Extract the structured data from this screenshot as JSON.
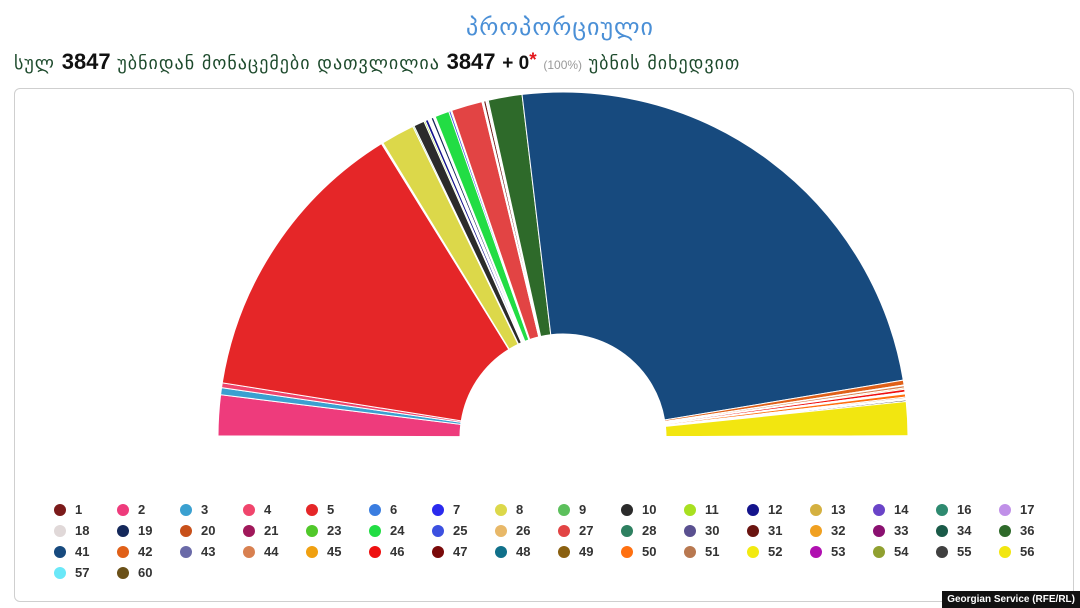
{
  "header": {
    "title": "პროპორციული",
    "total_prefix": "სულ",
    "total_precincts": "3847",
    "text_mid": "უბნიდან მონაცემები დათვლილია",
    "counted_precincts": "3847",
    "plus": "+ 0",
    "asterisk": "*",
    "percent": "(100%)",
    "text_end": "უბნის მიხედვით"
  },
  "watermark": "Georgian Service (RFE/RL)",
  "theme": {
    "title_color": "#4a8fd6",
    "subtitle_color": "#1d4a2c",
    "asterisk_color": "#e3161b"
  },
  "chart_data": {
    "type": "pie",
    "variant": "semi-circle donut",
    "legend_position": "bottom",
    "categories": [
      "1",
      "2",
      "3",
      "4",
      "5",
      "6",
      "7",
      "8",
      "9",
      "10",
      "11",
      "12",
      "13",
      "14",
      "16",
      "17",
      "18",
      "19",
      "20",
      "21",
      "23",
      "24",
      "25",
      "26",
      "27",
      "28",
      "30",
      "31",
      "32",
      "33",
      "34",
      "36",
      "41",
      "42",
      "43",
      "44",
      "45",
      "46",
      "47",
      "48",
      "49",
      "50",
      "51",
      "52",
      "53",
      "54",
      "55",
      "56",
      "57",
      "60"
    ],
    "values": [
      0.1,
      3.79,
      0.65,
      0.45,
      27.18,
      0.06,
      0.08,
      3.14,
      0.12,
      1.0,
      0.14,
      0.26,
      0.1,
      0.07,
      0.06,
      0.04,
      0.04,
      0.22,
      0.06,
      0.05,
      0.08,
      1.33,
      0.18,
      0.1,
      2.89,
      0.08,
      0.08,
      0.2,
      0.06,
      0.07,
      0.1,
      3.15,
      48.22,
      0.45,
      0.06,
      0.22,
      0.12,
      0.26,
      0.06,
      0.05,
      0.05,
      0.3,
      0.12,
      0.04,
      0.05,
      0.06,
      0.14,
      3.15,
      0.05,
      0.06
    ],
    "colors": [
      "#7b1a1a",
      "#ee3b7c",
      "#3aa0d0",
      "#f0456c",
      "#e52628",
      "#3a7de0",
      "#2a2aee",
      "#dcd84a",
      "#5cc05c",
      "#2b2b2b",
      "#a8e020",
      "#14148c",
      "#d4b040",
      "#6a44c8",
      "#2e8a70",
      "#c090e8",
      "#e0d8d8",
      "#14285a",
      "#c8501a",
      "#a0185a",
      "#50c82a",
      "#22dd44",
      "#3c50e0",
      "#e8b868",
      "#e24444",
      "#2e8060",
      "#5a5090",
      "#6a1410",
      "#f0a020",
      "#8a1070",
      "#1a5a48",
      "#2e6a2a",
      "#174a7e",
      "#e06018",
      "#6a6aa8",
      "#d88050",
      "#f0a010",
      "#ee1010",
      "#7a0a0a",
      "#10708a",
      "#8a6010",
      "#ff7010",
      "#b87850",
      "#f2ea10",
      "#b010b0",
      "#90a030",
      "#404040",
      "#f2e610",
      "#6ae8f8",
      "#6a5018"
    ]
  }
}
